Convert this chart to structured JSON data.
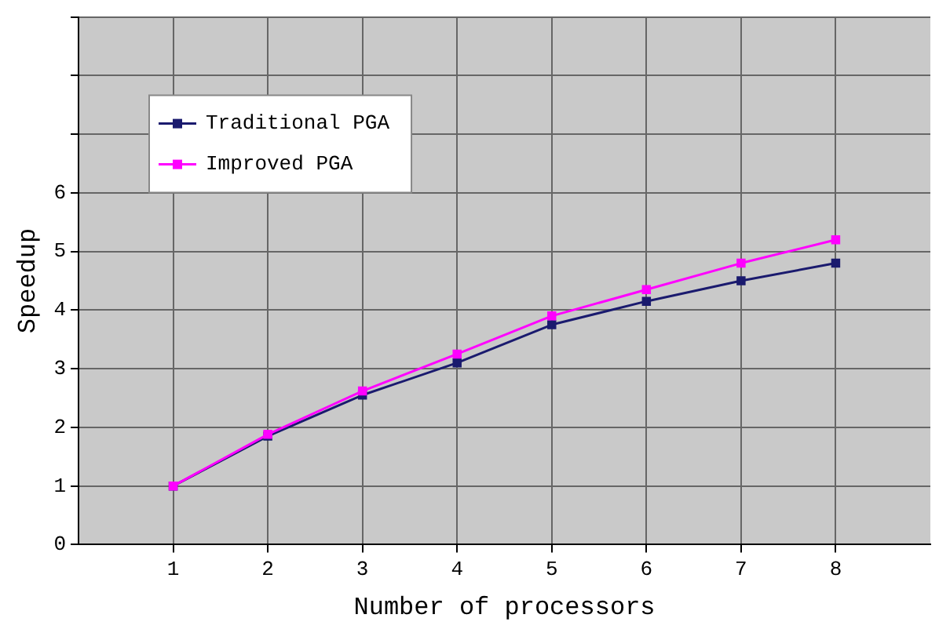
{
  "chart_data": {
    "type": "line",
    "xlabel": "Number of processors",
    "ylabel": "Speedup",
    "x": [
      1,
      2,
      3,
      4,
      5,
      6,
      7,
      8
    ],
    "series": [
      {
        "name": "Traditional PGA",
        "color": "#1a1a6e",
        "values": [
          1.0,
          1.85,
          2.55,
          3.1,
          3.75,
          4.15,
          4.5,
          4.8
        ]
      },
      {
        "name": "Improved PGA",
        "color": "#ff00ff",
        "values": [
          1.0,
          1.88,
          2.62,
          3.25,
          3.9,
          4.35,
          4.8,
          5.2
        ]
      }
    ],
    "xlim": [
      0,
      9
    ],
    "xticks": [
      1,
      2,
      3,
      4,
      5,
      6,
      7,
      8
    ],
    "ylim": [
      0,
      9
    ],
    "yticks": [
      0,
      1,
      2,
      3,
      4,
      5,
      6,
      {
        "value": 7,
        "label": null
      },
      {
        "value": 8,
        "label": null
      },
      {
        "value": 9,
        "label": null
      }
    ],
    "grid": true,
    "legend": "top left",
    "marker": "square",
    "line_style": "solid"
  }
}
